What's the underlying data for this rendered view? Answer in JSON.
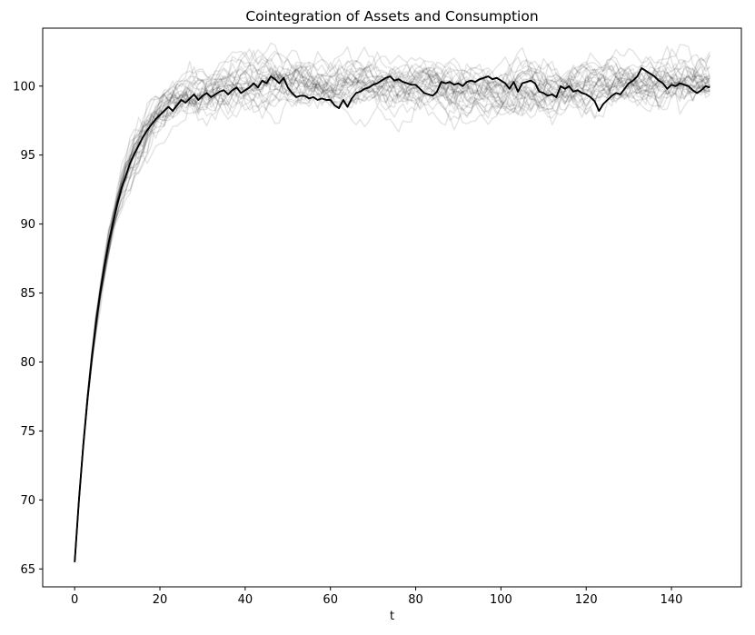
{
  "figure": {
    "background": "#ffffff"
  },
  "chart_data": {
    "type": "line",
    "title": "Cointegration of Assets and Consumption",
    "xlabel": "t",
    "ylabel": "",
    "xlim": [
      -7.5,
      156.4
    ],
    "ylim": [
      63.7,
      104.2
    ],
    "xticks": [
      0,
      20,
      40,
      60,
      80,
      100,
      120,
      140
    ],
    "yticks": [
      65,
      70,
      75,
      80,
      85,
      90,
      95,
      100
    ],
    "grid": false,
    "legend": null,
    "axes_color": "#000000",
    "tick_label_color": "#000000",
    "series": [
      {
        "name": "highlighted-path",
        "color": "#000000",
        "linewidth": 1.9,
        "x_start": 0,
        "x_step": 1,
        "y": [
          65.5,
          70.0,
          73.9,
          77.3,
          80.2,
          82.8,
          85.0,
          87.0,
          88.7,
          90.1,
          91.4,
          92.6,
          93.5,
          94.4,
          95.1,
          95.7,
          96.3,
          96.8,
          97.2,
          97.6,
          97.9,
          98.2,
          98.5,
          98.2,
          98.6,
          99.0,
          98.8,
          99.1,
          99.4,
          99.0,
          99.3,
          99.5,
          99.2,
          99.4,
          99.6,
          99.7,
          99.4,
          99.7,
          99.9,
          99.5,
          99.7,
          99.9,
          100.2,
          99.9,
          100.4,
          100.2,
          100.7,
          100.5,
          100.2,
          100.6,
          99.9,
          99.5,
          99.2,
          99.3,
          99.3,
          99.1,
          99.2,
          99.0,
          99.1,
          99.0,
          99.0,
          98.6,
          98.4,
          99.0,
          98.5,
          99.1,
          99.5,
          99.6,
          99.8,
          99.9,
          100.1,
          100.2,
          100.4,
          100.6,
          100.7,
          100.4,
          100.5,
          100.3,
          100.2,
          100.1,
          100.1,
          99.8,
          99.5,
          99.4,
          99.3,
          99.6,
          100.3,
          100.2,
          100.3,
          100.1,
          100.2,
          100.0,
          100.3,
          100.4,
          100.3,
          100.5,
          100.6,
          100.7,
          100.5,
          100.6,
          100.4,
          100.2,
          99.8,
          100.3,
          99.6,
          100.2,
          100.3,
          100.4,
          100.2,
          99.6,
          99.5,
          99.3,
          99.4,
          99.2,
          100.0,
          99.8,
          100.0,
          99.6,
          99.7,
          99.5,
          99.4,
          99.2,
          98.9,
          98.2,
          98.7,
          99.0,
          99.3,
          99.5,
          99.4,
          99.8,
          100.2,
          100.4,
          100.7,
          101.3,
          101.1,
          100.9,
          100.7,
          100.4,
          100.2,
          99.8,
          100.1,
          100.0,
          100.2,
          100.1,
          100.0,
          99.7,
          99.5,
          99.7,
          100.0,
          99.9
        ]
      }
    ],
    "ensemble": {
      "name": "simulated-paths",
      "count": 30,
      "color": "#000000",
      "opacity": 0.11,
      "linewidth": 1.4,
      "model": "ar1",
      "start": 65.5,
      "mean": 100,
      "rho": 0.87,
      "sigma": 0.48,
      "sigma_ramp": 10,
      "n_points": 150,
      "seed": 20240517
    }
  }
}
